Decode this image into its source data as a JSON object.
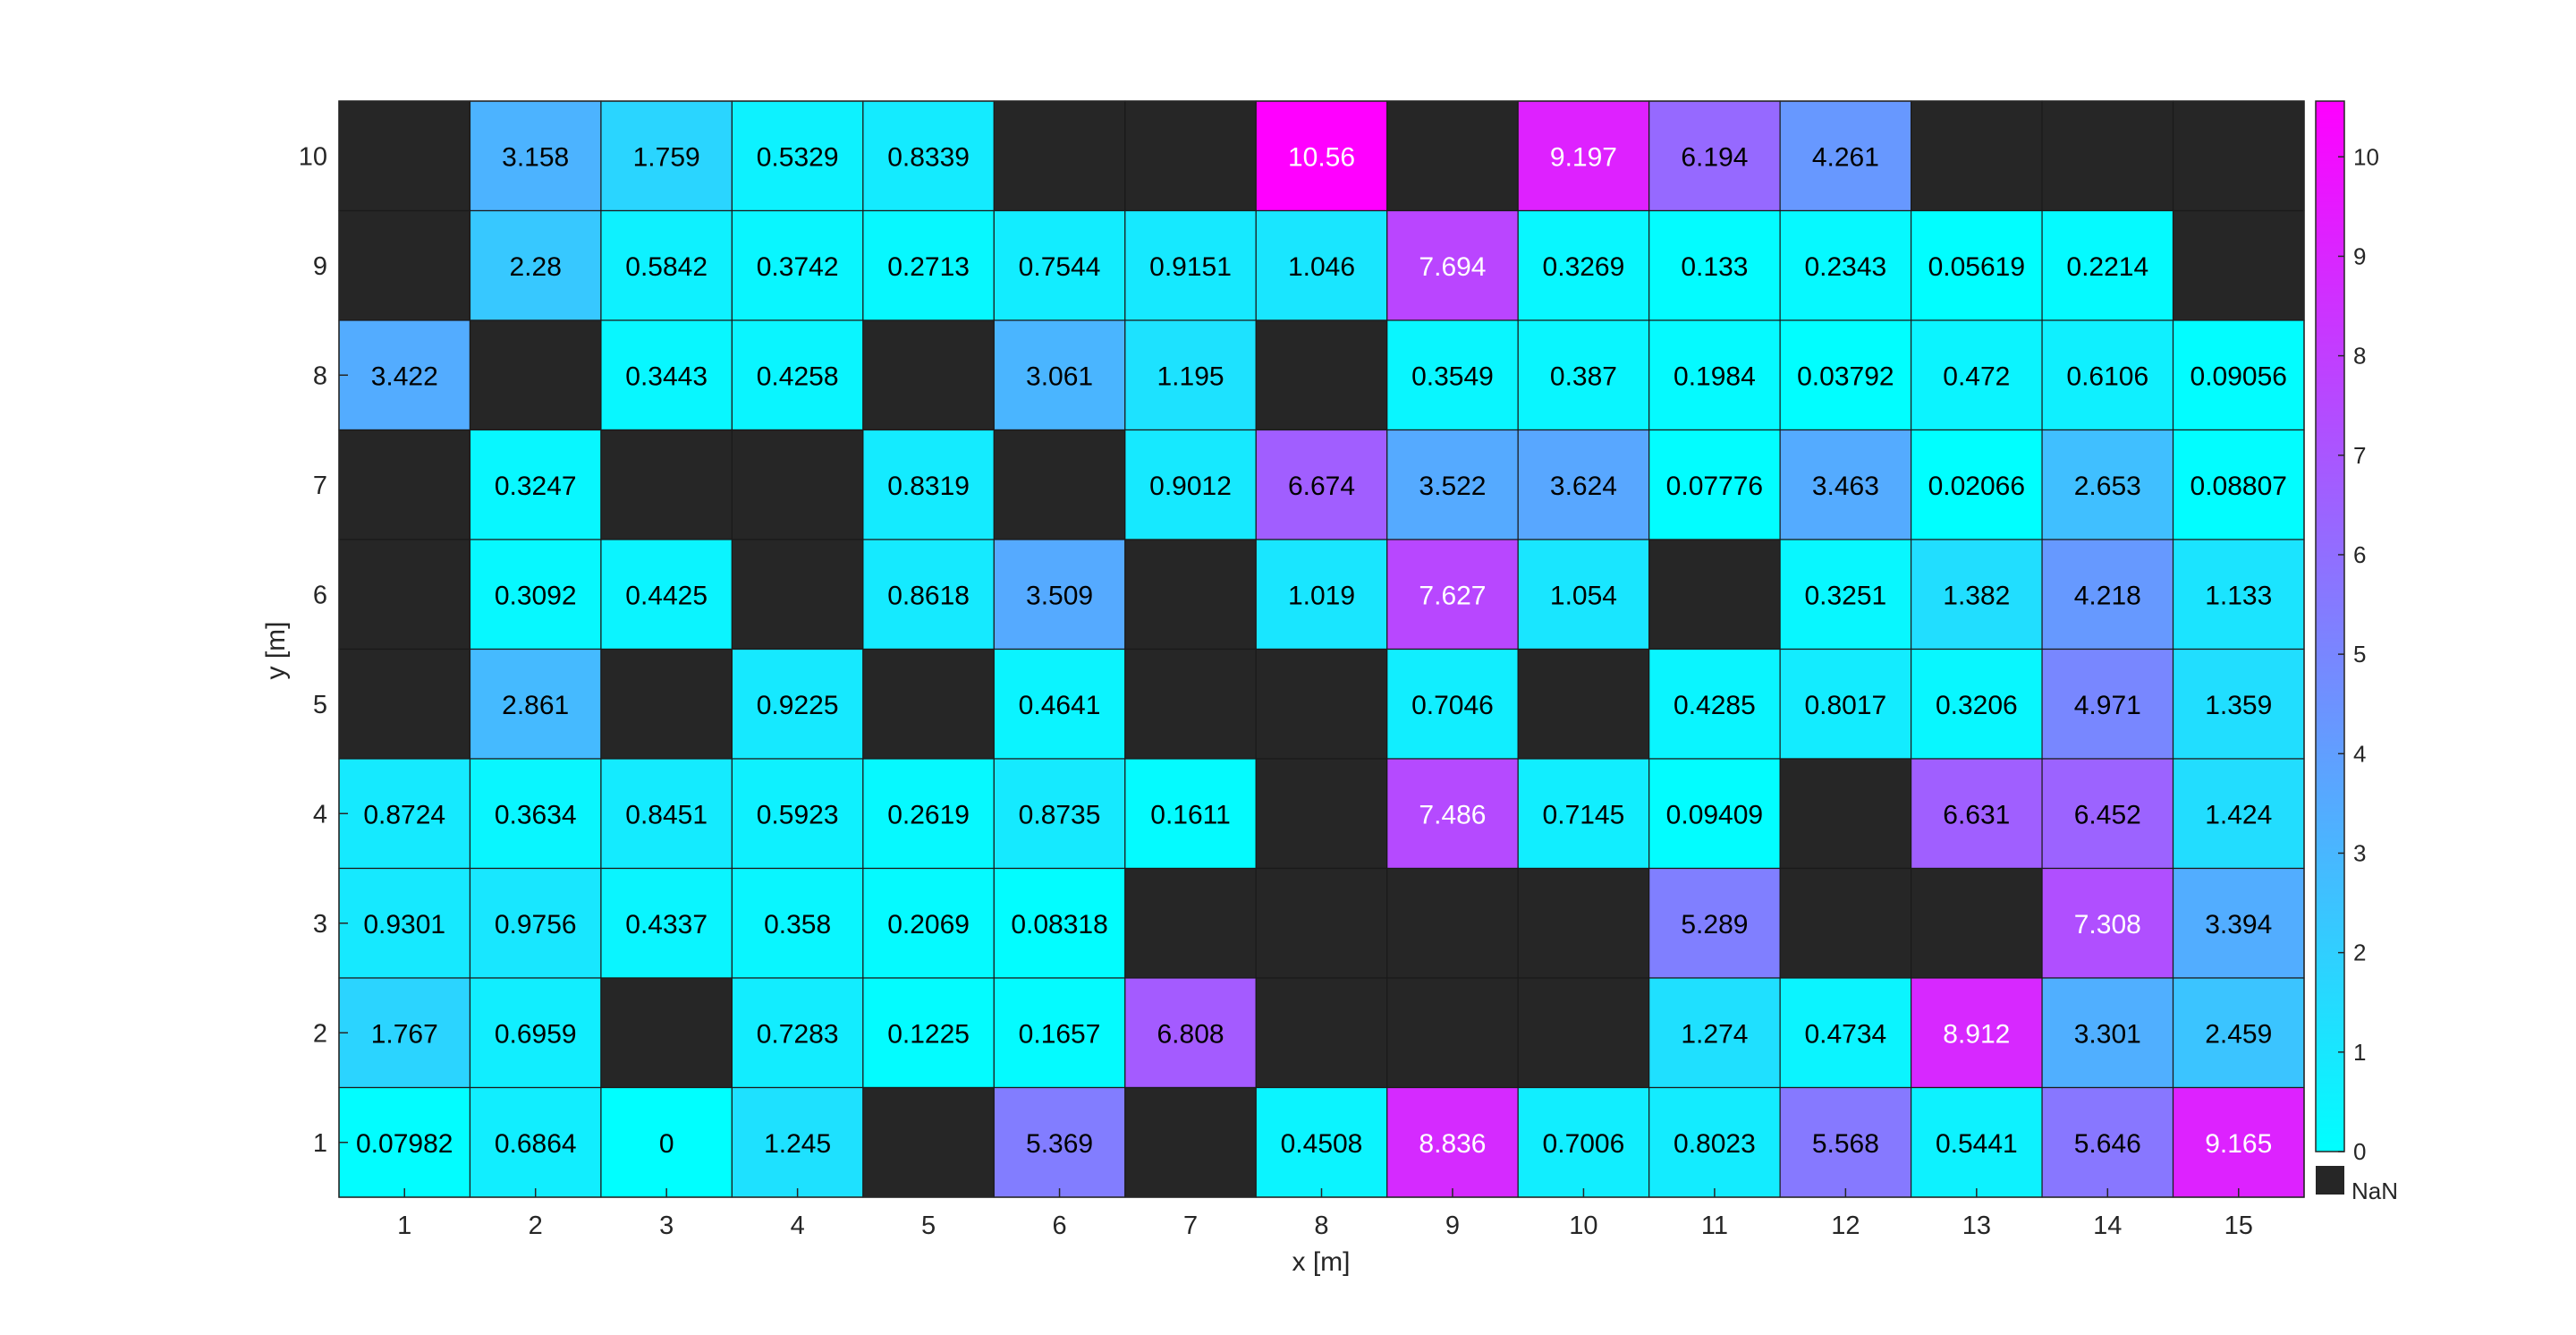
{
  "chart_data": {
    "type": "heatmap",
    "title": "",
    "xlabel": "x [m]",
    "ylabel": "y [m]",
    "x": [
      1,
      2,
      3,
      4,
      5,
      6,
      7,
      8,
      9,
      10,
      11,
      12,
      13,
      14,
      15
    ],
    "y": [
      10,
      9,
      8,
      7,
      6,
      5,
      4,
      3,
      2,
      1
    ],
    "cells": [
      [
        null,
        "3.158",
        "1.759",
        "0.5329",
        "0.8339",
        null,
        null,
        "10.56",
        null,
        "9.197",
        "6.194",
        "4.261",
        null,
        null,
        null
      ],
      [
        null,
        "2.28",
        "0.5842",
        "0.3742",
        "0.2713",
        "0.7544",
        "0.9151",
        "1.046",
        "7.694",
        "0.3269",
        "0.133",
        "0.2343",
        "0.05619",
        "0.2214",
        null
      ],
      [
        "3.422",
        null,
        "0.3443",
        "0.4258",
        null,
        "3.061",
        "1.195",
        null,
        "0.3549",
        "0.387",
        "0.1984",
        "0.03792",
        "0.472",
        "0.6106",
        "0.09056"
      ],
      [
        null,
        "0.3247",
        null,
        null,
        "0.8319",
        null,
        "0.9012",
        "6.674",
        "3.522",
        "3.624",
        "0.07776",
        "3.463",
        "0.02066",
        "2.653",
        "0.08807"
      ],
      [
        null,
        "0.3092",
        "0.4425",
        null,
        "0.8618",
        "3.509",
        null,
        "1.019",
        "7.627",
        "1.054",
        null,
        "0.3251",
        "1.382",
        "4.218",
        "1.133"
      ],
      [
        null,
        "2.861",
        null,
        "0.9225",
        null,
        "0.4641",
        null,
        null,
        "0.7046",
        null,
        "0.4285",
        "0.8017",
        "0.3206",
        "4.971",
        "1.359"
      ],
      [
        "0.8724",
        "0.3634",
        "0.8451",
        "0.5923",
        "0.2619",
        "0.8735",
        "0.1611",
        null,
        "7.486",
        "0.7145",
        "0.09409",
        null,
        "6.631",
        "6.452",
        "1.424"
      ],
      [
        "0.9301",
        "0.9756",
        "0.4337",
        "0.358",
        "0.2069",
        "0.08318",
        null,
        null,
        null,
        null,
        "5.289",
        null,
        null,
        "7.308",
        "3.394"
      ],
      [
        "1.767",
        "0.6959",
        null,
        "0.7283",
        "0.1225",
        "0.1657",
        "6.808",
        null,
        null,
        null,
        "1.274",
        "0.4734",
        "8.912",
        "3.301",
        "2.459"
      ],
      [
        "0.07982",
        "0.6864",
        "0",
        "1.245",
        null,
        "5.369",
        null,
        "0.4508",
        "8.836",
        "0.7006",
        "0.8023",
        "5.568",
        "0.5441",
        "5.646",
        "9.165"
      ]
    ],
    "colorbar": {
      "min": 0,
      "max": 10.56,
      "ticks": [
        0,
        1,
        2,
        3,
        4,
        5,
        6,
        7,
        8,
        9,
        10
      ],
      "colormap": [
        "#00ffff",
        "#ff00ff"
      ],
      "nan_color": "#262626",
      "nan_label": "NaN"
    },
    "grid": false
  }
}
